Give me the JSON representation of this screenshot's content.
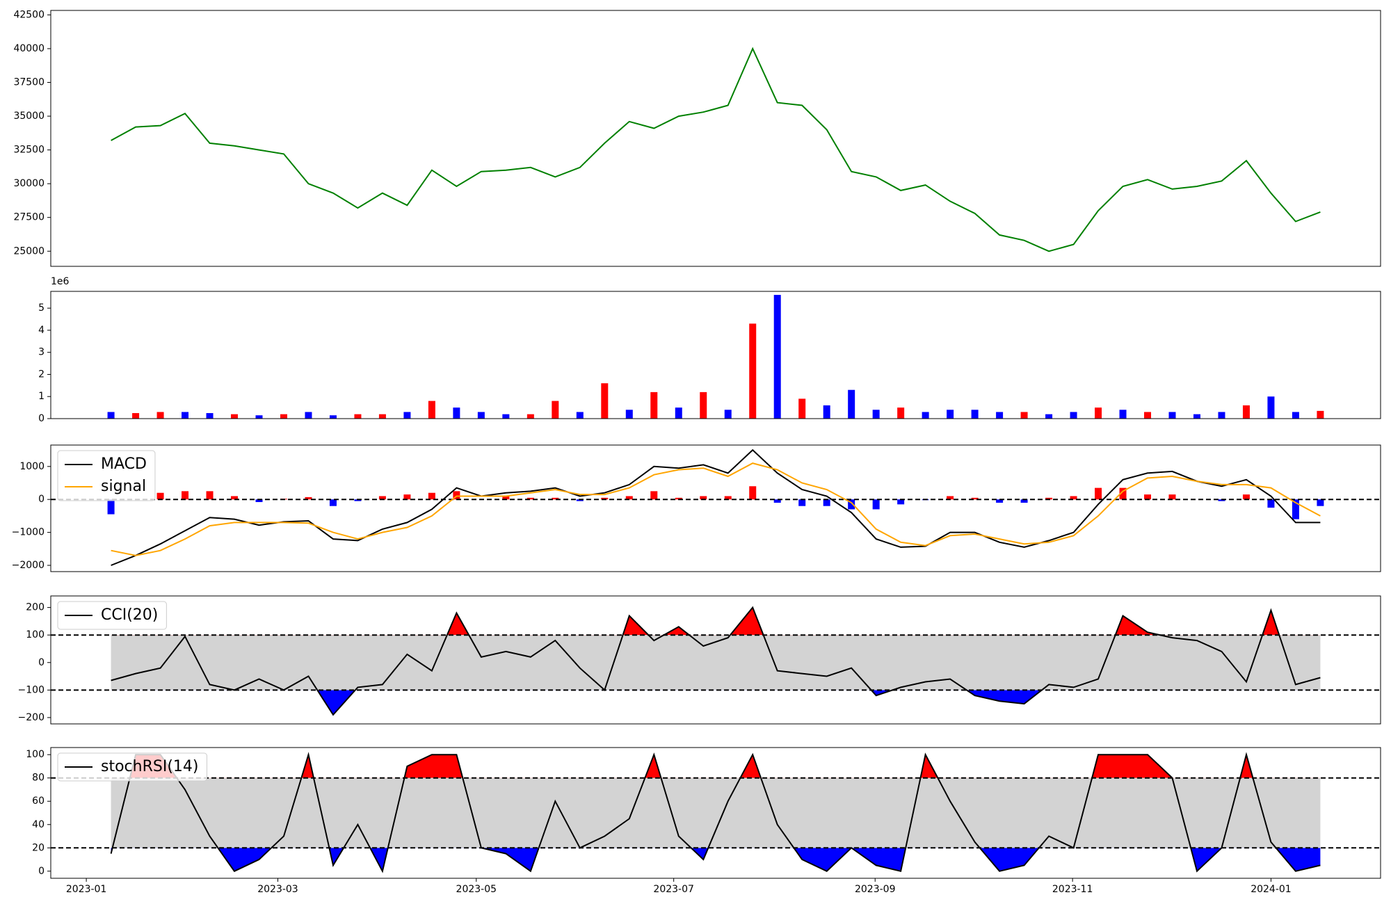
{
  "chart_data": {
    "x": [
      0.25,
      0.5,
      0.75,
      1,
      1.25,
      1.5,
      1.75,
      2,
      2.25,
      2.5,
      2.75,
      3,
      3.25,
      3.5,
      3.75,
      4,
      4.25,
      4.5,
      4.75,
      5,
      5.25,
      5.5,
      5.75,
      6,
      6.25,
      6.5,
      6.75,
      7,
      7.25,
      7.5,
      7.75,
      8,
      8.25,
      8.5,
      8.75,
      9,
      9.25,
      9.5,
      9.75,
      10,
      10.25,
      10.5,
      10.75,
      11,
      11.25,
      11.5,
      11.75,
      12,
      12.25,
      12.5
    ],
    "xlim": [
      -0.36,
      13.11
    ],
    "xticks": [
      {
        "value": 0,
        "label": "2023-01"
      },
      {
        "value": 1.94,
        "label": "2023-03"
      },
      {
        "value": 3.95,
        "label": "2023-05"
      },
      {
        "value": 5.95,
        "label": "2023-07"
      },
      {
        "value": 7.99,
        "label": "2023-09"
      },
      {
        "value": 9.99,
        "label": "2023-11"
      },
      {
        "value": 12,
        "label": "2024-01"
      }
    ],
    "panels": [
      {
        "type": "line",
        "color": "#008000",
        "values": [
          33200,
          34200,
          34300,
          35200,
          33000,
          32800,
          32500,
          32200,
          30000,
          29300,
          28200,
          29300,
          28400,
          31000,
          29800,
          30900,
          31000,
          31200,
          30500,
          31200,
          33000,
          34600,
          34100,
          35000,
          35300,
          35800,
          40000,
          36000,
          35800,
          34000,
          30900,
          30500,
          29500,
          29900,
          28700,
          27800,
          26200,
          25800,
          25000,
          25500,
          28000,
          29800,
          30300,
          29600,
          29800,
          30200,
          31700,
          29300,
          27200,
          27900
        ],
        "ylim": [
          23880,
          42830
        ],
        "yticks": [
          25000,
          27500,
          30000,
          32500,
          35000,
          37500,
          40000,
          42500
        ]
      },
      {
        "type": "bar",
        "offset_label": "1e6",
        "values": [
          0.3,
          0.25,
          0.3,
          0.3,
          0.25,
          0.2,
          0.15,
          0.2,
          0.3,
          0.15,
          0.2,
          0.2,
          0.3,
          0.8,
          0.5,
          0.3,
          0.2,
          0.2,
          0.8,
          0.3,
          1.6,
          0.4,
          1.2,
          0.5,
          1.2,
          0.4,
          4.3,
          5.6,
          0.9,
          0.6,
          1.3,
          0.4,
          0.5,
          0.3,
          0.4,
          0.4,
          0.3,
          0.3,
          0.2,
          0.3,
          0.5,
          0.4,
          0.3,
          0.3,
          0.2,
          0.3,
          0.6,
          1.0,
          0.3,
          0.35
        ],
        "colors": [
          "blue",
          "red",
          "red",
          "blue",
          "blue",
          "red",
          "blue",
          "red",
          "blue",
          "blue",
          "red",
          "red",
          "blue",
          "red",
          "blue",
          "blue",
          "blue",
          "red",
          "red",
          "blue",
          "red",
          "blue",
          "red",
          "blue",
          "red",
          "blue",
          "red",
          "blue",
          "red",
          "blue",
          "blue",
          "blue",
          "red",
          "blue",
          "blue",
          "blue",
          "blue",
          "red",
          "blue",
          "blue",
          "red",
          "blue",
          "red",
          "blue",
          "blue",
          "blue",
          "red",
          "blue",
          "blue",
          "red"
        ],
        "ylim": [
          0,
          5.76
        ],
        "yticks": [
          0,
          1,
          2,
          3,
          4,
          5
        ]
      },
      {
        "type": "macd",
        "legend": "upper left",
        "series": [
          {
            "name": "MACD",
            "color": "#000000",
            "values": [
              -2000,
              -1700,
              -1350,
              -950,
              -550,
              -600,
              -780,
              -680,
              -650,
              -1200,
              -1250,
              -900,
              -700,
              -300,
              350,
              100,
              200,
              250,
              350,
              100,
              200,
              450,
              1000,
              950,
              1050,
              800,
              1500,
              800,
              300,
              100,
              -400,
              -1200,
              -1450,
              -1420,
              -1000,
              -1000,
              -1300,
              -1450,
              -1250,
              -1000,
              -150,
              600,
              800,
              850,
              550,
              400,
              600,
              100,
              -700,
              -700
            ]
          },
          {
            "name": "signal",
            "color": "#ffa500",
            "values": [
              -1550,
              -1700,
              -1550,
              -1200,
              -800,
              -700,
              -700,
              -700,
              -720,
              -1000,
              -1200,
              -1000,
              -850,
              -500,
              100,
              100,
              100,
              200,
              300,
              150,
              150,
              350,
              750,
              900,
              950,
              700,
              1100,
              900,
              500,
              300,
              -100,
              -900,
              -1300,
              -1400,
              -1100,
              -1050,
              -1200,
              -1350,
              -1300,
              -1100,
              -500,
              250,
              650,
              700,
              550,
              450,
              450,
              350,
              -100,
              -500
            ]
          }
        ],
        "histogram": [
          -450,
          0,
          200,
          250,
          250,
          100,
          -80,
          20,
          70,
          -200,
          -50,
          100,
          150,
          200,
          250,
          0,
          100,
          50,
          50,
          -50,
          50,
          100,
          250,
          50,
          100,
          100,
          400,
          -100,
          -200,
          -200,
          -300,
          -300,
          -150,
          -20,
          100,
          50,
          -100,
          -100,
          50,
          100,
          350,
          350,
          150,
          150,
          0,
          -50,
          150,
          -250,
          -600,
          -200
        ],
        "up_color": "red",
        "down_color": "blue",
        "hline": 0,
        "ylim": [
          -2190,
          1650
        ],
        "yticks": [
          {
            "value": -2000,
            "label": "−2000"
          },
          {
            "value": -1000,
            "label": "−1000"
          },
          0,
          1000
        ]
      },
      {
        "type": "band",
        "legend": "upper left",
        "series": [
          {
            "name": "CCI(20)",
            "color": "#000000",
            "values": [
              -65,
              -40,
              -20,
              95,
              -80,
              -100,
              -60,
              -100,
              -50,
              -190,
              -90,
              -80,
              30,
              -30,
              180,
              20,
              40,
              20,
              80,
              -20,
              -100,
              170,
              80,
              130,
              60,
              90,
              200,
              -30,
              -40,
              -50,
              -20,
              -120,
              -90,
              -70,
              -60,
              -120,
              -140,
              -150,
              -80,
              -90,
              -60,
              170,
              110,
              90,
              80,
              40,
              -70,
              190,
              -80,
              -55
            ]
          }
        ],
        "bands": [
          -100,
          100
        ],
        "band_color": "#d3d3d3",
        "upper_color": "red",
        "lower_color": "blue",
        "ylim": [
          -223,
          242
        ],
        "yticks": [
          {
            "value": -200,
            "label": "−200"
          },
          {
            "value": -100,
            "label": "−100"
          },
          0,
          100,
          200
        ]
      },
      {
        "type": "band",
        "legend": "upper left",
        "series": [
          {
            "name": "stochRSI(14)",
            "color": "#000000",
            "values": [
              15,
              100,
              100,
              70,
              30,
              0,
              10,
              30,
              100,
              5,
              40,
              0,
              90,
              100,
              100,
              20,
              15,
              0,
              60,
              20,
              30,
              45,
              100,
              30,
              10,
              60,
              100,
              40,
              10,
              0,
              20,
              5,
              0,
              100,
              60,
              25,
              0,
              5,
              30,
              20,
              100,
              100,
              100,
              80,
              0,
              20,
              100,
              25,
              0,
              5
            ]
          }
        ],
        "bands": [
          20,
          80
        ],
        "band_color": "#d3d3d3",
        "upper_color": "red",
        "lower_color": "blue",
        "ylim": [
          -6.1,
          106.1
        ],
        "yticks": [
          0,
          20,
          40,
          60,
          80,
          100
        ]
      }
    ]
  }
}
